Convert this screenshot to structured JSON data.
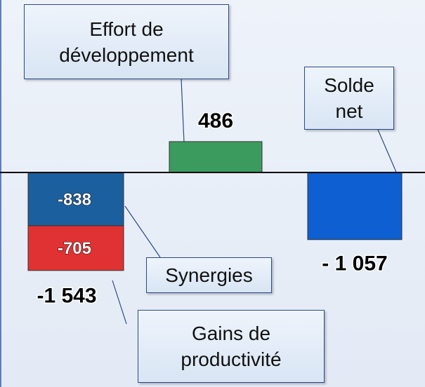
{
  "chart_data": {
    "type": "stacked_bar",
    "categories": [
      null,
      null,
      null
    ],
    "series": [
      {
        "name": "Synergies",
        "color": "#1b5f9e",
        "values": [
          -838,
          null,
          null
        ]
      },
      {
        "name": "Gains de productivité",
        "color": "#e03232",
        "values": [
          -705,
          null,
          null
        ]
      },
      {
        "name": "Effort de développement",
        "color": "#3b9b5e",
        "values": [
          null,
          486,
          null
        ]
      },
      {
        "name": "Solde net",
        "color": "#0e5fd2",
        "values": [
          null,
          null,
          -1057
        ],
        "value_labels": [
          null,
          null,
          "- 1 057"
        ]
      }
    ],
    "totals": [
      -1543,
      null,
      null
    ],
    "total_labels": [
      "-1 543",
      null,
      null
    ],
    "ylim": [
      -3377,
      2715
    ]
  }
}
